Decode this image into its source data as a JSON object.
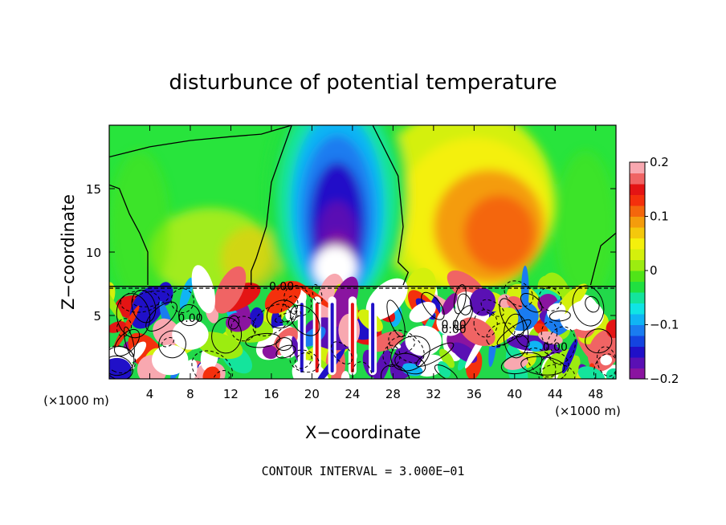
{
  "chart_data": {
    "type": "heatmap",
    "title": "disturbunce of potential temperature",
    "xlabel": "X−coordinate",
    "ylabel": "Z−coordinate",
    "x_unit": "(×1000 m)",
    "x_unit_right": "(×1000 m)",
    "xlim": [
      0,
      50
    ],
    "ylim": [
      0,
      20
    ],
    "x_ticks": [
      4,
      8,
      12,
      16,
      20,
      24,
      28,
      32,
      36,
      40,
      44,
      48
    ],
    "x_tick_labels": [
      "4",
      "8",
      "12",
      "16",
      "20",
      "24",
      "28",
      "32",
      "36",
      "40",
      "44",
      "48"
    ],
    "y_ticks": [
      5,
      10,
      15
    ],
    "y_tick_labels": [
      "5",
      "10",
      "15"
    ],
    "colorbar": {
      "min": -0.2,
      "max": 0.2,
      "tick_values": [
        0.2,
        0.1,
        0,
        -0.1,
        -0.2
      ],
      "tick_labels": [
        "0.2",
        "0.1",
        "0",
        "−0.1",
        "−0.2"
      ],
      "colors": [
        "#8a14a0",
        "#5a10b4",
        "#2010c8",
        "#1444e0",
        "#1a7cf0",
        "#10b4f4",
        "#10e4e4",
        "#14e49c",
        "#20e040",
        "#50e418",
        "#9cec10",
        "#d4f00c",
        "#f4f00c",
        "#f4c80c",
        "#f49c0c",
        "#f4660c",
        "#f4300c",
        "#e41414",
        "#f06464",
        "#f8a8b0"
      ]
    },
    "contour_labels": [
      "0.00",
      "0.00",
      "0.00",
      "0.00",
      "0.00"
    ],
    "footer": "CONTOUR INTERVAL = 3.000E−01",
    "features": [
      {
        "x": 22.5,
        "z": 13.5,
        "value": -0.16
      },
      {
        "x": 22.5,
        "z": 10.0,
        "value": -0.21
      },
      {
        "x": 38.5,
        "z": 11.5,
        "value": 0.12
      },
      {
        "x": 41.0,
        "z": 10.0,
        "value": 0.1
      },
      {
        "x": 22.0,
        "z": 17.5,
        "value": -0.06
      },
      {
        "x": 8.0,
        "z": 15.0,
        "value": 0.0
      },
      {
        "x": 46.0,
        "z": 15.0,
        "value": 0.0
      },
      {
        "x": 33.0,
        "z": 15.0,
        "value": 0.06
      }
    ],
    "grid": false,
    "legend": "right colorbar"
  }
}
